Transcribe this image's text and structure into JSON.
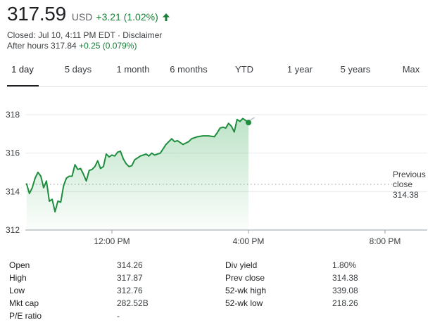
{
  "quote": {
    "price": "317.59",
    "currency": "USD",
    "change": "+3.21 (1.02%)",
    "direction_icon": "arrow-up-icon",
    "closed_text": "Closed: Jul 10, 4:11 PM EDT · Disclaimer",
    "after_hours_label": "After hours 317.84",
    "after_hours_change": "+0.25 (0.079%)"
  },
  "tabs": [
    {
      "label": "1 day",
      "active": true
    },
    {
      "label": "5 days",
      "active": false
    },
    {
      "label": "1 month",
      "active": false
    },
    {
      "label": "6 months",
      "active": false
    },
    {
      "label": "YTD",
      "active": false
    },
    {
      "label": "1 year",
      "active": false
    },
    {
      "label": "5 years",
      "active": false
    },
    {
      "label": "Max",
      "active": false
    }
  ],
  "chart_data": {
    "type": "line",
    "ylim": [
      312,
      318
    ],
    "y_ticks": [
      318,
      316,
      314,
      312
    ],
    "x_range": [
      "09:30",
      "20:00"
    ],
    "x_ticks": [
      {
        "label": "12:00 PM",
        "time": "12:00"
      },
      {
        "label": "4:00 PM",
        "time": "16:00"
      },
      {
        "label": "8:00 PM",
        "time": "20:00"
      }
    ],
    "previous_close": {
      "label_line1": "Previous",
      "label_line2": "close",
      "value": "314.38",
      "y": 314.38
    },
    "grid": true,
    "colors": {
      "line": "#1e8e3e",
      "fill": "#34a853",
      "after_hours": "#bdc1c6",
      "grid": "#e8eaed",
      "axis": "#5f6368"
    },
    "series": [
      {
        "type": "regular",
        "points": [
          [
            "09:30",
            314.4
          ],
          [
            "09:35",
            313.9
          ],
          [
            "09:40",
            314.2
          ],
          [
            "09:45",
            314.7
          ],
          [
            "09:50",
            315.0
          ],
          [
            "09:55",
            314.8
          ],
          [
            "10:00",
            314.2
          ],
          [
            "10:05",
            314.55
          ],
          [
            "10:10",
            313.5
          ],
          [
            "10:15",
            313.6
          ],
          [
            "10:20",
            312.95
          ],
          [
            "10:25",
            313.5
          ],
          [
            "10:30",
            313.45
          ],
          [
            "10:35",
            314.3
          ],
          [
            "10:40",
            314.7
          ],
          [
            "10:45",
            314.8
          ],
          [
            "10:50",
            314.8
          ],
          [
            "10:55",
            315.4
          ],
          [
            "11:00",
            315.15
          ],
          [
            "11:05",
            315.2
          ],
          [
            "11:10",
            314.9
          ],
          [
            "11:15",
            314.55
          ],
          [
            "11:20",
            315.1
          ],
          [
            "11:25",
            315.15
          ],
          [
            "11:30",
            315.3
          ],
          [
            "11:35",
            315.6
          ],
          [
            "11:40",
            315.2
          ],
          [
            "11:45",
            315.3
          ],
          [
            "11:50",
            315.95
          ],
          [
            "11:55",
            315.8
          ],
          [
            "12:00",
            315.9
          ],
          [
            "12:05",
            315.85
          ],
          [
            "12:10",
            316.05
          ],
          [
            "12:15",
            316.1
          ],
          [
            "12:20",
            315.7
          ],
          [
            "12:25",
            315.45
          ],
          [
            "12:30",
            315.3
          ],
          [
            "12:35",
            315.35
          ],
          [
            "12:40",
            315.65
          ],
          [
            "12:45",
            315.75
          ],
          [
            "12:50",
            315.85
          ],
          [
            "13:00",
            315.95
          ],
          [
            "13:05",
            315.85
          ],
          [
            "13:10",
            316.0
          ],
          [
            "13:15",
            315.9
          ],
          [
            "13:20",
            315.95
          ],
          [
            "13:25",
            316.0
          ],
          [
            "13:35",
            316.45
          ],
          [
            "13:40",
            316.6
          ],
          [
            "13:45",
            316.75
          ],
          [
            "13:50",
            316.6
          ],
          [
            "13:55",
            316.65
          ],
          [
            "14:00",
            316.55
          ],
          [
            "14:05",
            316.45
          ],
          [
            "14:15",
            316.6
          ],
          [
            "14:20",
            316.75
          ],
          [
            "14:25",
            316.8
          ],
          [
            "14:30",
            316.85
          ],
          [
            "14:40",
            316.9
          ],
          [
            "14:50",
            316.9
          ],
          [
            "15:00",
            316.85
          ],
          [
            "15:05",
            317.05
          ],
          [
            "15:10",
            317.3
          ],
          [
            "15:15",
            317.35
          ],
          [
            "15:20",
            317.3
          ],
          [
            "15:25",
            317.55
          ],
          [
            "15:30",
            317.4
          ],
          [
            "15:35",
            317.1
          ],
          [
            "15:40",
            317.75
          ],
          [
            "15:45",
            317.65
          ],
          [
            "15:50",
            317.8
          ],
          [
            "15:55",
            317.7
          ],
          [
            "16:00",
            317.59
          ]
        ]
      },
      {
        "type": "after_hours",
        "points": [
          [
            "16:00",
            317.59
          ],
          [
            "16:05",
            317.75
          ],
          [
            "16:10",
            317.84
          ]
        ]
      }
    ]
  },
  "stats": {
    "left": [
      {
        "label": "Open",
        "value": "314.26"
      },
      {
        "label": "High",
        "value": "317.87"
      },
      {
        "label": "Low",
        "value": "312.76"
      },
      {
        "label": "Mkt cap",
        "value": "282.52B"
      },
      {
        "label": "P/E ratio",
        "value": "-"
      }
    ],
    "right": [
      {
        "label": "Div yield",
        "value": "1.80%"
      },
      {
        "label": "Prev close",
        "value": "314.38"
      },
      {
        "label": "52-wk high",
        "value": "339.08"
      },
      {
        "label": "52-wk low",
        "value": "218.26"
      }
    ]
  }
}
